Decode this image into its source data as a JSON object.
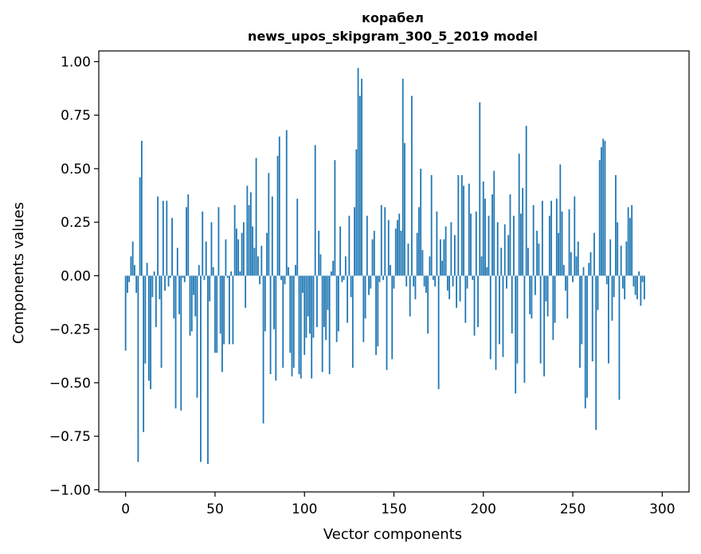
{
  "chart_data": {
    "type": "bar",
    "title_line1": "корабел",
    "title_line2": "news_upos_skipgram_300_5_2019 model",
    "xlabel": "Vector components",
    "ylabel": "Components values",
    "xlim": [
      -15,
      315
    ],
    "ylim": [
      -1.01,
      1.05
    ],
    "xticks": [
      0,
      50,
      100,
      150,
      200,
      250,
      300
    ],
    "yticks": [
      -1.0,
      -0.75,
      -0.5,
      -0.25,
      0.0,
      0.25,
      0.5,
      0.75,
      1.0
    ],
    "ytick_labels": [
      "−1.00",
      "−0.75",
      "−0.50",
      "−0.25",
      "0.00",
      "0.25",
      "0.50",
      "0.75",
      "1.00"
    ],
    "xtick_labels": [
      "0",
      "50",
      "100",
      "150",
      "200",
      "250",
      "300"
    ],
    "bar_color": "#1f77b4",
    "values": [
      -0.35,
      -0.08,
      -0.03,
      0.09,
      0.16,
      0.05,
      -0.08,
      -0.87,
      0.46,
      0.63,
      -0.73,
      -0.41,
      0.06,
      -0.49,
      -0.53,
      -0.1,
      0.02,
      -0.24,
      0.37,
      -0.11,
      -0.43,
      0.35,
      -0.07,
      0.35,
      -0.05,
      -0.01,
      0.27,
      -0.2,
      -0.62,
      0.13,
      -0.18,
      -0.63,
      -0.01,
      -0.03,
      0.32,
      0.38,
      -0.28,
      -0.26,
      -0.09,
      -0.19,
      -0.57,
      0.05,
      -0.87,
      0.3,
      -0.02,
      0.16,
      -0.88,
      -0.12,
      0.25,
      0.04,
      -0.36,
      -0.36,
      0.32,
      -0.27,
      -0.45,
      -0.32,
      0.17,
      -0.01,
      -0.32,
      0.02,
      -0.32,
      0.33,
      0.22,
      0.17,
      0.02,
      0.2,
      0.25,
      -0.15,
      0.42,
      0.33,
      0.39,
      0.23,
      0.13,
      0.55,
      0.09,
      -0.04,
      0.14,
      -0.69,
      -0.26,
      0.2,
      0.48,
      -0.46,
      0.37,
      -0.25,
      -0.49,
      0.56,
      0.65,
      -0.02,
      -0.43,
      -0.04,
      0.68,
      0.04,
      -0.36,
      -0.47,
      -0.43,
      0.05,
      0.36,
      -0.46,
      -0.48,
      -0.08,
      -0.37,
      -0.29,
      -0.19,
      -0.27,
      -0.48,
      -0.29,
      0.61,
      -0.24,
      0.21,
      0.1,
      -0.45,
      -0.24,
      -0.3,
      -0.16,
      -0.46,
      0.02,
      0.07,
      0.54,
      -0.31,
      -0.26,
      0.23,
      -0.03,
      -0.02,
      0.09,
      -0.22,
      0.28,
      -0.1,
      -0.43,
      0.32,
      0.59,
      0.97,
      0.84,
      0.92,
      -0.31,
      -0.2,
      0.28,
      -0.09,
      -0.06,
      0.17,
      0.21,
      -0.37,
      -0.33,
      -0.03,
      0.33,
      -0.02,
      0.32,
      -0.44,
      0.26,
      0.05,
      -0.39,
      -0.06,
      0.22,
      0.26,
      0.29,
      0.21,
      0.92,
      0.62,
      -0.05,
      0.15,
      -0.19,
      0.84,
      -0.05,
      -0.11,
      0.2,
      0.32,
      0.5,
      0.12,
      -0.05,
      -0.08,
      -0.27,
      0.09,
      0.47,
      -0.02,
      -0.05,
      0.3,
      -0.53,
      0.17,
      0.07,
      0.17,
      0.23,
      -0.07,
      -0.11,
      0.25,
      -0.05,
      0.19,
      -0.15,
      0.47,
      -0.12,
      0.47,
      0.42,
      -0.22,
      -0.06,
      0.43,
      0.29,
      -0.02,
      -0.28,
      0.3,
      -0.24,
      0.81,
      0.09,
      0.44,
      0.36,
      0.04,
      0.28,
      -0.39,
      0.38,
      0.49,
      -0.44,
      0.25,
      -0.32,
      0.13,
      -0.38,
      0.24,
      -0.06,
      0.19,
      0.38,
      -0.27,
      0.28,
      -0.55,
      -0.41,
      0.57,
      0.29,
      0.41,
      -0.5,
      0.7,
      0.13,
      -0.18,
      -0.2,
      0.33,
      -0.09,
      0.21,
      0.15,
      -0.41,
      0.35,
      -0.47,
      -0.12,
      -0.19,
      0.28,
      0.35,
      -0.3,
      -0.22,
      0.36,
      0.2,
      0.52,
      0.3,
      0.05,
      -0.07,
      -0.2,
      0.31,
      0.11,
      -0.03,
      0.37,
      0.09,
      0.16,
      -0.43,
      -0.32,
      0.04,
      -0.62,
      -0.57,
      0.06,
      0.11,
      -0.4,
      0.2,
      -0.72,
      -0.16,
      0.54,
      0.6,
      0.64,
      0.63,
      -0.04,
      -0.41,
      0.17,
      -0.21,
      -0.1,
      0.47,
      0.25,
      -0.58,
      0.14,
      -0.06,
      -0.11,
      0.16,
      0.32,
      0.27,
      0.33,
      -0.05,
      -0.09,
      -0.11,
      0.02,
      -0.14,
      -0.03,
      -0.11
    ]
  }
}
